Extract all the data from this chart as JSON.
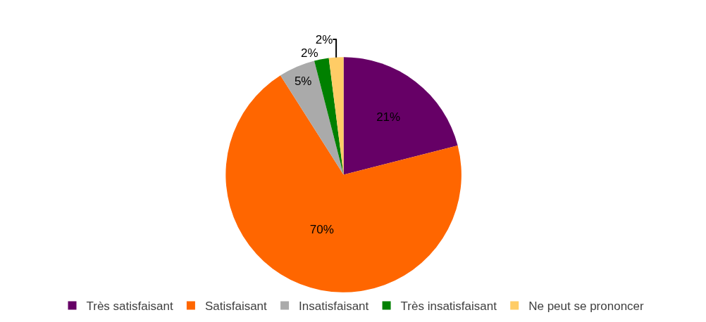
{
  "chart_data": {
    "type": "pie",
    "categories": [
      "Très satisfaisant",
      "Satisfaisant",
      "Insatisfaisant",
      "Très insatisfaisant",
      "Ne peut se prononcer"
    ],
    "values": [
      21,
      70,
      5,
      2,
      2
    ],
    "colors": [
      "#660066",
      "#ff6600",
      "#aaaaaa",
      "#008000",
      "#ffcc66"
    ],
    "value_labels": [
      "21%",
      "70%",
      "5%",
      "2%",
      "2%"
    ],
    "legend": "bottom"
  }
}
